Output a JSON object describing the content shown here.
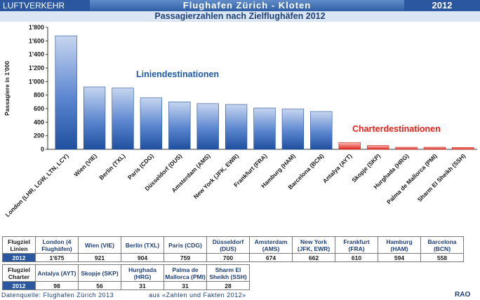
{
  "header": {
    "section": "LUFTVERKEHR",
    "airport": "Flughafen Zürich - Kloten",
    "year": "2012"
  },
  "title": "Passagierzahlen nach Zielflughäfen 2012",
  "chart_data": {
    "type": "bar",
    "title": "Passagierzahlen nach Zielflughäfen 2012",
    "ylabel": "Passagiere in 1'000",
    "ylim": [
      0,
      1800
    ],
    "yticks": [
      "0",
      "200",
      "400",
      "600",
      "800",
      "1'000",
      "1'200",
      "1'400",
      "1'600",
      "1'800"
    ],
    "grid": false,
    "categories": [
      "London (LHR, LGW, LTN, LCY)",
      "Wien (VIE)",
      "Berlin (TXL)",
      "Paris (CDG)",
      "Düsseldorf (DUS)",
      "Amsterdam (AMS)",
      "New York (JFK, EWR)",
      "Frankfurt (FRA)",
      "Hamburg (HAM)",
      "Barcelona (BCN)",
      "Antalya (AYT)",
      "Skopje (SKP)",
      "Hurghada (HRG)",
      "Palma de Mallorca (PMI)",
      "Sharm El Sheikh (SSH)"
    ],
    "values": [
      1675,
      921,
      904,
      759,
      700,
      674,
      662,
      610,
      594,
      558,
      98,
      56,
      31,
      31,
      28
    ],
    "groups": [
      "linien",
      "linien",
      "linien",
      "linien",
      "linien",
      "linien",
      "linien",
      "linien",
      "linien",
      "linien",
      "charter",
      "charter",
      "charter",
      "charter",
      "charter"
    ],
    "annotations": [
      "Liniendestinationen",
      "Charterdestinationen"
    ],
    "colors": {
      "linien": "#2f62b5",
      "charter": "#e3241b"
    }
  },
  "tables": {
    "linien": {
      "head": "Flugziel Linien",
      "year": "2012",
      "columns": [
        "London (4 Flughäfen)",
        "Wien (VIE)",
        "Berlin (TXL)",
        "Paris (CDG)",
        "Düsseldorf (DUS)",
        "Amsterdam (AMS)",
        "New York (JFK, EWR)",
        "Frankfurt (FRA)",
        "Hamburg (HAM)",
        "Barcelona (BCN)"
      ],
      "values": [
        "1'675",
        "921",
        "904",
        "759",
        "700",
        "674",
        "662",
        "610",
        "594",
        "558"
      ]
    },
    "charter": {
      "head": "Flugziel Charter",
      "year": "2012",
      "columns": [
        "Antalya (AYT)",
        "Skopje (SKP)",
        "Hurghada (HRG)",
        "Palma de Mallorca (PMI)",
        "Sharm El Sheikh (SSH)"
      ],
      "values": [
        "98",
        "56",
        "31",
        "31",
        "28"
      ]
    }
  },
  "footer": {
    "source": "Datenquelle: Flughafen Zürich  2013",
    "reference": "aus «Zahlen und Fakten 2012»",
    "author": "RAO"
  }
}
